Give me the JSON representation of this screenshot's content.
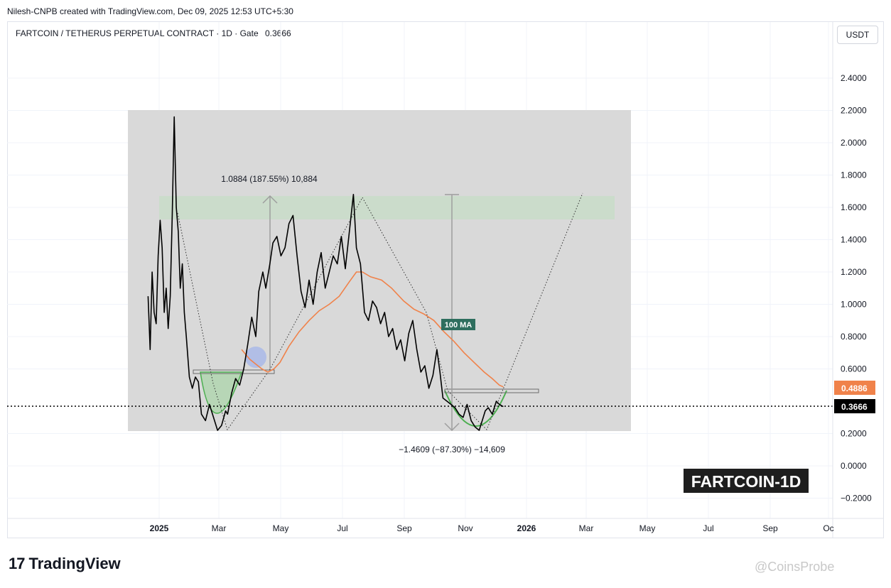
{
  "header": {
    "credit": "Nilesh-CNPB created with TradingView.com, Dec 09, 2025 12:53 UTC+5:30"
  },
  "symbol": {
    "title": "FARTCOIN / TETHERUS PERPETUAL CONTRACT · 1D · Gate",
    "last": "0.3666"
  },
  "currency_button": "USDT",
  "chart_label": "FARTCOIN-1D",
  "footer": {
    "brand": "TradingView",
    "watermark": "@CoinsProbe"
  },
  "colors": {
    "price": "#000000",
    "ma": "#f0824a",
    "green": "#4caf50",
    "ma_label_bg": "#2e6e5e",
    "price_tag": "#000000",
    "ma_tag": "#f0824a"
  },
  "chart_data": {
    "type": "line",
    "x_ticks": [
      "2025",
      "Mar",
      "May",
      "Jul",
      "Sep",
      "Nov",
      "2026",
      "Mar",
      "May",
      "Jul",
      "Sep",
      "Oc"
    ],
    "y_ticks": [
      "2.4000",
      "2.2000",
      "2.0000",
      "1.8000",
      "1.6000",
      "1.4000",
      "1.2000",
      "1.0000",
      "0.8000",
      "0.6000",
      "0.2000",
      "0.0000",
      "−0.2000"
    ],
    "ylim": [
      -0.28,
      2.62
    ],
    "price_tags": {
      "ma": "0.4886",
      "last": "0.3666"
    },
    "annotations": {
      "up_move": "1.0884 (187.55%) 10,884",
      "down_move": "−1.4609 (−87.30%) −14,609",
      "ma_label": "100 MA"
    },
    "series": [
      {
        "name": "price",
        "x": [
          "2024-12-21",
          "2024-12-23",
          "2024-12-25",
          "2024-12-27",
          "2024-12-29",
          "2024-12-31",
          "2025-01-02",
          "2025-01-04",
          "2025-01-06",
          "2025-01-08",
          "2025-01-10",
          "2025-01-12",
          "2025-01-14",
          "2025-01-16",
          "2025-01-18",
          "2025-01-20",
          "2025-01-22",
          "2025-01-24",
          "2025-01-26",
          "2025-01-28",
          "2025-01-31",
          "2025-02-03",
          "2025-02-06",
          "2025-02-09",
          "2025-02-12",
          "2025-02-16",
          "2025-02-20",
          "2025-02-24",
          "2025-02-28",
          "2025-03-04",
          "2025-03-08",
          "2025-03-10",
          "2025-03-14",
          "2025-03-18",
          "2025-03-22",
          "2025-03-26",
          "2025-03-30",
          "2025-04-03",
          "2025-04-07",
          "2025-04-10",
          "2025-04-14",
          "2025-04-17",
          "2025-04-21",
          "2025-04-24",
          "2025-04-28",
          "2025-05-02",
          "2025-05-06",
          "2025-05-10",
          "2025-05-14",
          "2025-05-18",
          "2025-05-22",
          "2025-05-26",
          "2025-05-30",
          "2025-06-03",
          "2025-06-07",
          "2025-06-11",
          "2025-06-15",
          "2025-06-19",
          "2025-06-23",
          "2025-06-27",
          "2025-07-01",
          "2025-07-05",
          "2025-07-09",
          "2025-07-13",
          "2025-07-16",
          "2025-07-20",
          "2025-07-24",
          "2025-07-28",
          "2025-08-01",
          "2025-08-05",
          "2025-08-09",
          "2025-08-13",
          "2025-08-17",
          "2025-08-21",
          "2025-08-25",
          "2025-08-29",
          "2025-09-02",
          "2025-09-06",
          "2025-09-10",
          "2025-09-14",
          "2025-09-18",
          "2025-09-22",
          "2025-09-26",
          "2025-09-30",
          "2025-10-04",
          "2025-10-07",
          "2025-10-10",
          "2025-10-14",
          "2025-10-18",
          "2025-10-22",
          "2025-10-26",
          "2025-10-30",
          "2025-11-03",
          "2025-11-07",
          "2025-11-11",
          "2025-11-15",
          "2025-11-19",
          "2025-11-21",
          "2025-11-24",
          "2025-11-28",
          "2025-12-02",
          "2025-12-05",
          "2025-12-08",
          "2025-12-09"
        ],
        "values": [
          1.05,
          0.72,
          1.2,
          0.95,
          0.88,
          1.3,
          1.52,
          1.35,
          0.95,
          1.1,
          0.85,
          1.05,
          1.55,
          2.16,
          1.6,
          1.45,
          1.1,
          1.25,
          0.95,
          0.8,
          0.55,
          0.48,
          0.55,
          0.52,
          0.32,
          0.28,
          0.38,
          0.3,
          0.22,
          0.25,
          0.34,
          0.32,
          0.45,
          0.54,
          0.5,
          0.6,
          0.75,
          0.92,
          0.8,
          1.08,
          1.2,
          1.1,
          1.25,
          1.38,
          1.42,
          1.3,
          1.35,
          1.5,
          1.55,
          1.3,
          1.08,
          0.98,
          1.15,
          1.0,
          1.2,
          1.32,
          1.1,
          1.2,
          1.3,
          1.25,
          1.42,
          1.22,
          1.45,
          1.68,
          1.35,
          1.25,
          0.95,
          0.9,
          1.02,
          0.98,
          0.88,
          0.95,
          0.8,
          0.85,
          0.72,
          0.78,
          0.65,
          0.82,
          0.9,
          0.72,
          0.58,
          0.62,
          0.48,
          0.56,
          0.72,
          0.58,
          0.42,
          0.4,
          0.38,
          0.36,
          0.32,
          0.3,
          0.38,
          0.28,
          0.24,
          0.22,
          0.3,
          0.34,
          0.36,
          0.32,
          0.4,
          0.38,
          0.37,
          0.3666
        ]
      },
      {
        "name": "100 MA",
        "x": [
          "2025-03-24",
          "2025-04-01",
          "2025-04-07",
          "2025-04-13",
          "2025-04-19",
          "2025-04-25",
          "2025-05-01",
          "2025-05-10",
          "2025-05-20",
          "2025-05-30",
          "2025-06-09",
          "2025-06-19",
          "2025-06-29",
          "2025-07-09",
          "2025-07-16",
          "2025-07-22",
          "2025-07-30",
          "2025-08-10",
          "2025-08-20",
          "2025-09-01",
          "2025-09-11",
          "2025-09-21",
          "2025-10-01",
          "2025-10-11",
          "2025-10-21",
          "2025-10-31",
          "2025-11-10",
          "2025-11-20",
          "2025-11-28",
          "2025-12-05",
          "2025-12-09"
        ],
        "values": [
          0.72,
          0.66,
          0.63,
          0.6,
          0.58,
          0.6,
          0.64,
          0.74,
          0.83,
          0.9,
          0.96,
          1.0,
          1.05,
          1.14,
          1.2,
          1.2,
          1.17,
          1.15,
          1.1,
          1.02,
          0.97,
          0.94,
          0.9,
          0.83,
          0.77,
          0.7,
          0.64,
          0.58,
          0.54,
          0.5,
          0.4886
        ]
      }
    ]
  }
}
